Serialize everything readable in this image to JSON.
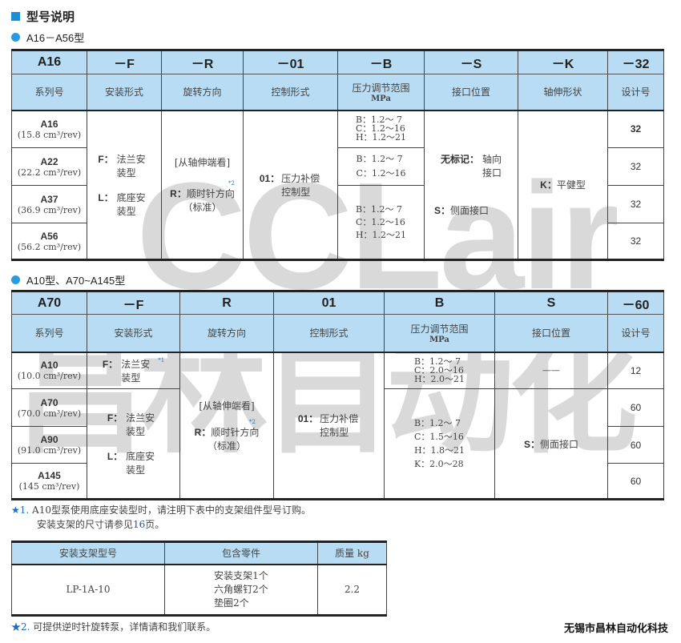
{
  "heading": "型号说明",
  "section1": {
    "subtitle": "A16－A56型",
    "codes": [
      "A16",
      "－F",
      "－R",
      "－01",
      "－B",
      "－S",
      "－K",
      "－32"
    ],
    "labels": [
      "系列号",
      "安装形式",
      "旋转方向",
      "控制形式",
      "压力调节范围",
      "接口位置",
      "轴伸形状",
      "设计号"
    ],
    "pressure_unit": "MPa",
    "models": [
      {
        "name": "A16",
        "disp": "(15.8 cm³/rev)"
      },
      {
        "name": "A22",
        "disp": "(22.2 cm³/rev)"
      },
      {
        "name": "A37",
        "disp": "(36.9 cm³/rev)"
      },
      {
        "name": "A56",
        "disp": "(56.2 cm³/rev)"
      }
    ],
    "mount": {
      "f_code": "F：",
      "f_text": "法兰安装型",
      "l_code": "L：",
      "l_text": "底座安装型"
    },
    "rotation": {
      "view": "[从轴伸端看]",
      "code": "R：",
      "text": "顺时针方向",
      "std": "（标准）",
      "note_mark": "*2"
    },
    "control": {
      "code": "01：",
      "text": "压力补偿控制型"
    },
    "pressure": [
      [
        "B：1.2～ 7",
        "C：1.2～16",
        "H：1.2～21"
      ],
      [
        "B：1.2～ 7",
        "C：1.2～16"
      ],
      [
        "B：1.2～ 7",
        "C：1.2～16",
        "H：1.2～21"
      ]
    ],
    "port": {
      "none_code": "无标记：",
      "none_text": "轴向接口",
      "s_code": "S：",
      "s_text": "侧面接口"
    },
    "shaft": {
      "code": "K：",
      "text": "平健型"
    },
    "design": [
      "32",
      "32",
      "32",
      "32"
    ]
  },
  "section2": {
    "subtitle": "A10型、A70~A145型",
    "codes": [
      "A70",
      "－F",
      "R",
      "01",
      "B",
      "S",
      "－60"
    ],
    "labels": [
      "系列号",
      "安装形式",
      "旋转方向",
      "控制形式",
      "压力调节范围",
      "接口位置",
      "设计号"
    ],
    "pressure_unit": "MPa",
    "models": [
      {
        "name": "A10",
        "disp": "(10.0 cm³/rev)"
      },
      {
        "name": "A70",
        "disp": "(70.0 cm³/rev)"
      },
      {
        "name": "A90",
        "disp": "(91.0 cm³/rev)"
      },
      {
        "name": "A145",
        "disp": "(145 cm³/rev)"
      }
    ],
    "mount_a10": {
      "code": "F：",
      "text": "法兰安装型",
      "note_mark": "*1"
    },
    "mount": {
      "f_code": "F：",
      "f_text": "法兰安装型",
      "l_code": "L：",
      "l_text": "底座安装型"
    },
    "rotation": {
      "view": "[从轴伸端看]",
      "code": "R：",
      "text": "顺时针方向",
      "std": "（标准）",
      "note_mark": "*2"
    },
    "control": {
      "code": "01：",
      "text": "压力补偿控制型"
    },
    "pressure": [
      [
        "B：1.2～ 7",
        "C：2.0～16",
        "H：2.0～21"
      ],
      [
        "B：1.2～ 7",
        "C：1.5～16",
        "H：1.8～21",
        "K：2.0～28"
      ]
    ],
    "port": {
      "a10": "——",
      "s_code": "S：",
      "s_text": "侧面接口"
    },
    "design": [
      "12",
      "60",
      "60",
      "60"
    ]
  },
  "notes": {
    "star": "★",
    "n1_num": "1.",
    "n1_line1": "A10型泵使用底座安装型时，请注明下表中的支架组件型号订购。",
    "n1_line2a": "安装支架的尺寸请参见",
    "n1_page": "16",
    "n1_line2b": "页。",
    "n2_num": "2.",
    "n2": "可提供逆时针旋转泵，详情请和我们联系。"
  },
  "bracket_table": {
    "headers": [
      "安装支架型号",
      "包含零件",
      "质量  kg"
    ],
    "row": {
      "model": "LP-1A-10",
      "parts": [
        "安装支架1个",
        "六角螺钉2个",
        "垫圈2个"
      ],
      "mass": "2.2"
    }
  },
  "watermark": {
    "logo_text": "CCLair",
    "cn_text": "昌林自动化"
  },
  "company": "无锡市昌林自动化科技",
  "colors": {
    "header_bg": "#b7dcf3",
    "accent": "#1a8fd8"
  }
}
